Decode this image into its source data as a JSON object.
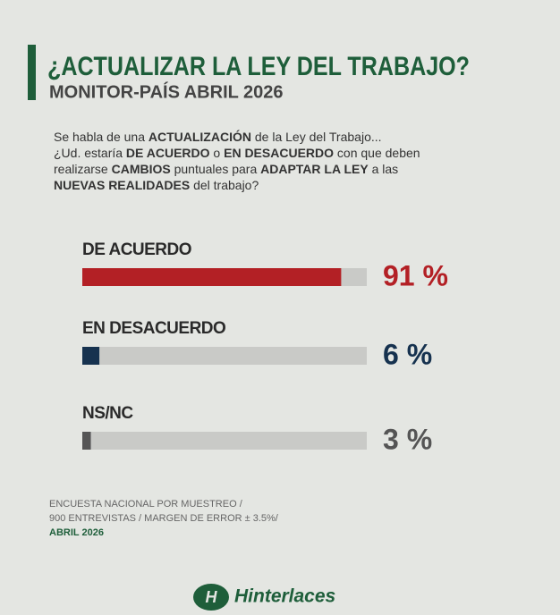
{
  "chart_data": {
    "type": "hbar",
    "title": "¿ACTUALIZAR LA LEY DEL TRABAJO?",
    "subtitle": "MONITOR-PAÍS ABRIL 2026",
    "question": [
      [
        {
          "text": "Se habla de una ",
          "bold": false
        },
        {
          "text": "ACTUALIZACIÓN",
          "bold": true
        },
        {
          "text": " de la Ley del Trabajo...",
          "bold": false
        }
      ],
      [
        {
          "text": "¿Ud. estaría ",
          "bold": false
        },
        {
          "text": "DE ACUERDO",
          "bold": true
        },
        {
          "text": " o ",
          "bold": false
        },
        {
          "text": "EN DESACUERDO",
          "bold": true
        },
        {
          "text": " con que deben",
          "bold": false
        }
      ],
      [
        {
          "text": "realizarse ",
          "bold": false
        },
        {
          "text": "CAMBIOS",
          "bold": true
        },
        {
          "text": " puntuales para ",
          "bold": false
        },
        {
          "text": "ADAPTAR LA LEY",
          "bold": true
        },
        {
          "text": " a las",
          "bold": false
        }
      ],
      [
        {
          "text": "NUEVAS REALIDADES",
          "bold": true
        },
        {
          "text": " del trabajo?",
          "bold": false
        }
      ]
    ],
    "categories": [
      "DE ACUERDO",
      "EN DESACUERDO",
      "NS/NC"
    ],
    "values": [
      91,
      6,
      3
    ],
    "value_labels": [
      "91 %",
      "6 %",
      "3 %"
    ],
    "colors": [
      "#b32025",
      "#16324f",
      "#555555"
    ],
    "xlim": [
      0,
      100
    ],
    "notes": [
      "ENCUESTA NACIONAL POR MUESTREO /",
      "900 ENTREVISTAS / MARGEN DE ERROR  ± 3.5%/",
      "ABRIL 2026"
    ],
    "source": "Hinterlaces"
  }
}
